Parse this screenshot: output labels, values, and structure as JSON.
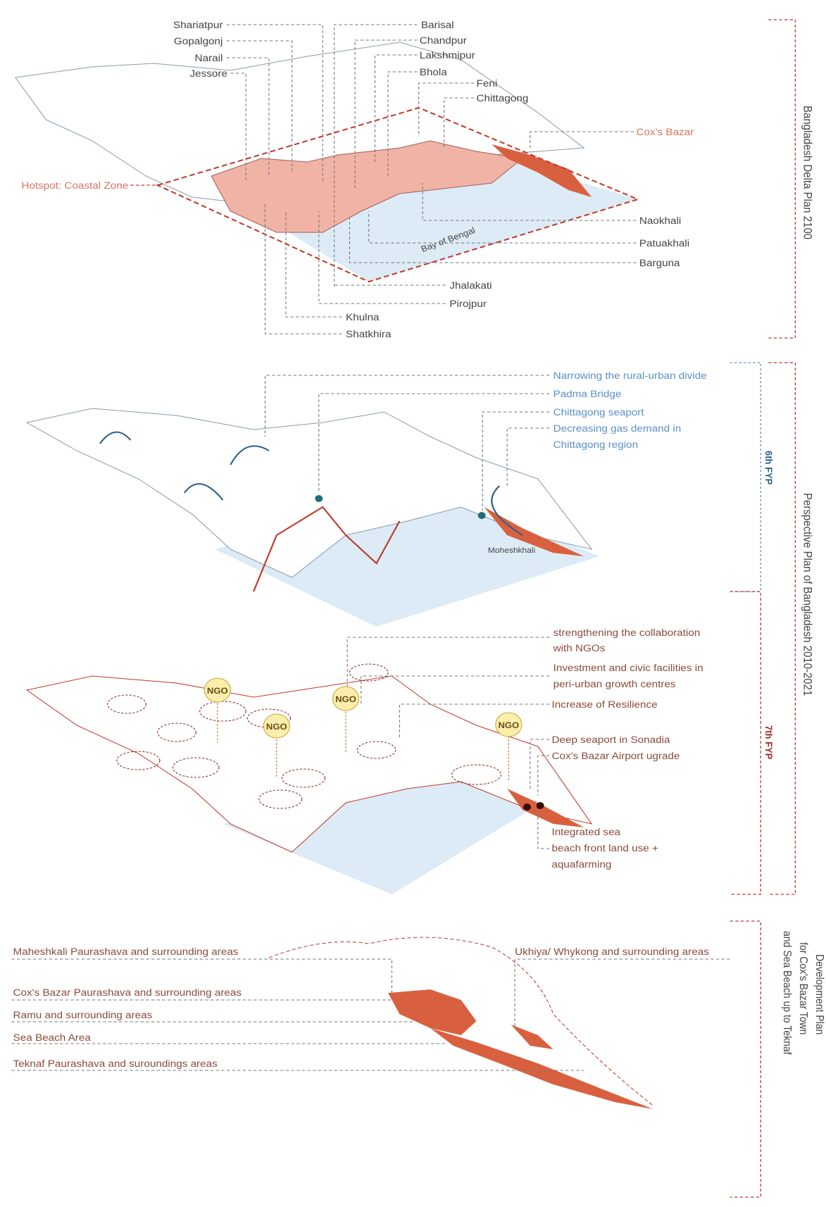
{
  "side_labels": {
    "delta_plan": "Bangladesh Delta Plan 2100",
    "perspective_plan": "Perspective Plan of Bangladesh 2010-2021",
    "fyp6": "6th FYP",
    "fyp7": "7th FYP",
    "development_plan": [
      "Development Plan",
      "for Cox's Bazar Town",
      "and Sea Beach up to Teknaf"
    ]
  },
  "delta_map": {
    "districts": [
      "Shariatpur",
      "Gopalgonj",
      "Narail",
      "Jessore",
      "Barisal",
      "Chandpur",
      "Lakshmipur",
      "Bhola",
      "Feni",
      "Chittagong",
      "Cox's Bazar",
      "Naokhali",
      "Patuakhali",
      "Barguna",
      "Jhalakati",
      "Pirojpur",
      "Khulna",
      "Shatkhira"
    ],
    "hotspot": "Hotspot: Coastal Zone",
    "sea": "Bay of Bengal"
  },
  "fyp6_map": {
    "annotations": [
      [
        "Narrowing the rural-urban divide"
      ],
      [
        "Padma Bridge"
      ],
      [
        "Chittagong seaport"
      ],
      [
        "Decreasing gas demand in",
        "Chittagong region"
      ]
    ],
    "place": "Moheshkhali"
  },
  "fyp7_map": {
    "annotations": [
      [
        "strengthening the collaboration",
        "with NGOs"
      ],
      [
        "Investment and civic facilities in",
        "peri-urban growth centres"
      ],
      [
        "Increase of Resilience"
      ],
      [
        "Deep seaport in Sonadia"
      ],
      [
        "Cox's Bazar Airport ugrade"
      ],
      [
        "Integrated sea",
        "beach front land use +",
        "aquafarming"
      ]
    ],
    "ngo_badges": [
      "NGO",
      "NGO",
      "NGO",
      "NGO"
    ]
  },
  "coxs_bazar_map": {
    "areas": [
      "Maheshkali Paurashava and surrounding areas",
      "Cox's Bazar Paurashava and surrounding areas",
      "Ramu and surrounding areas",
      "Sea Beach Area",
      "Teknaf Paurashava and suroundings areas",
      "Ukhiya/ Whykong and surrounding areas"
    ]
  }
}
